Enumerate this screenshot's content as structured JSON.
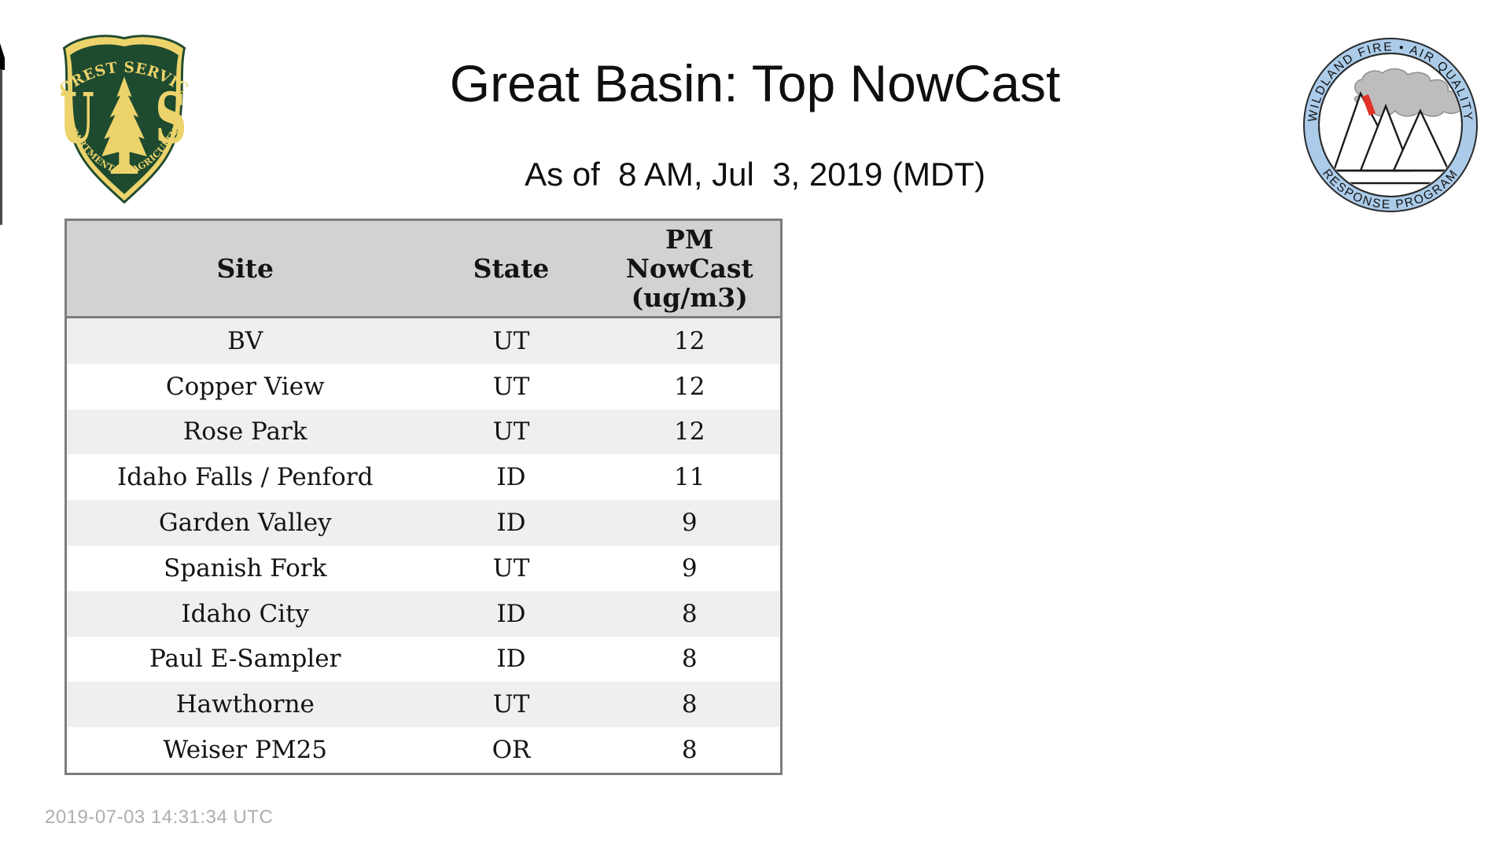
{
  "page": {
    "title": "Great Basin: Top NowCast",
    "subtitle": "As of  8 AM, Jul  3, 2019 (MDT)",
    "generated_timestamp": "2019-07-03 14:31:34 UTC"
  },
  "logos": {
    "forest_service": {
      "name": "US Forest Service shield",
      "arc_top": "FOREST SERVICE",
      "arc_bottom": "DEPARTMENT OF AGRICULTURE",
      "monogram_left": "U",
      "monogram_right": "S",
      "green": "#1e4a2f",
      "gold": "#ecd36b"
    },
    "air_quality_program": {
      "name": "Wildland Fire Air Quality Response Program badge",
      "arc_top": "WILDLAND FIRE • AIR QUALITY",
      "arc_bottom": "RESPONSE PROGRAM",
      "ring_blue": "#abcbe9",
      "smoke_gray": "#bdbdbd",
      "flame_red": "#e23128"
    }
  },
  "table": {
    "columns": {
      "site": "Site",
      "state": "State",
      "value": "PM\nNowCast\n(ug/m3)"
    },
    "rows": [
      {
        "site": "BV",
        "state": "UT",
        "value": "12"
      },
      {
        "site": "Copper View",
        "state": "UT",
        "value": "12"
      },
      {
        "site": "Rose Park",
        "state": "UT",
        "value": "12"
      },
      {
        "site": "Idaho Falls / Penford",
        "state": "ID",
        "value": "11"
      },
      {
        "site": "Garden Valley",
        "state": "ID",
        "value": "9"
      },
      {
        "site": "Spanish Fork",
        "state": "UT",
        "value": "9"
      },
      {
        "site": "Idaho City",
        "state": "ID",
        "value": "8"
      },
      {
        "site": "Paul E-Sampler",
        "state": "ID",
        "value": "8"
      },
      {
        "site": "Hawthorne",
        "state": "UT",
        "value": "8"
      },
      {
        "site": "Weiser PM25",
        "state": "OR",
        "value": "8"
      }
    ],
    "colors": {
      "header_bg": "#d2d2d2",
      "row_alt_bg": "#efefef",
      "border": "#7d7d7d"
    }
  }
}
